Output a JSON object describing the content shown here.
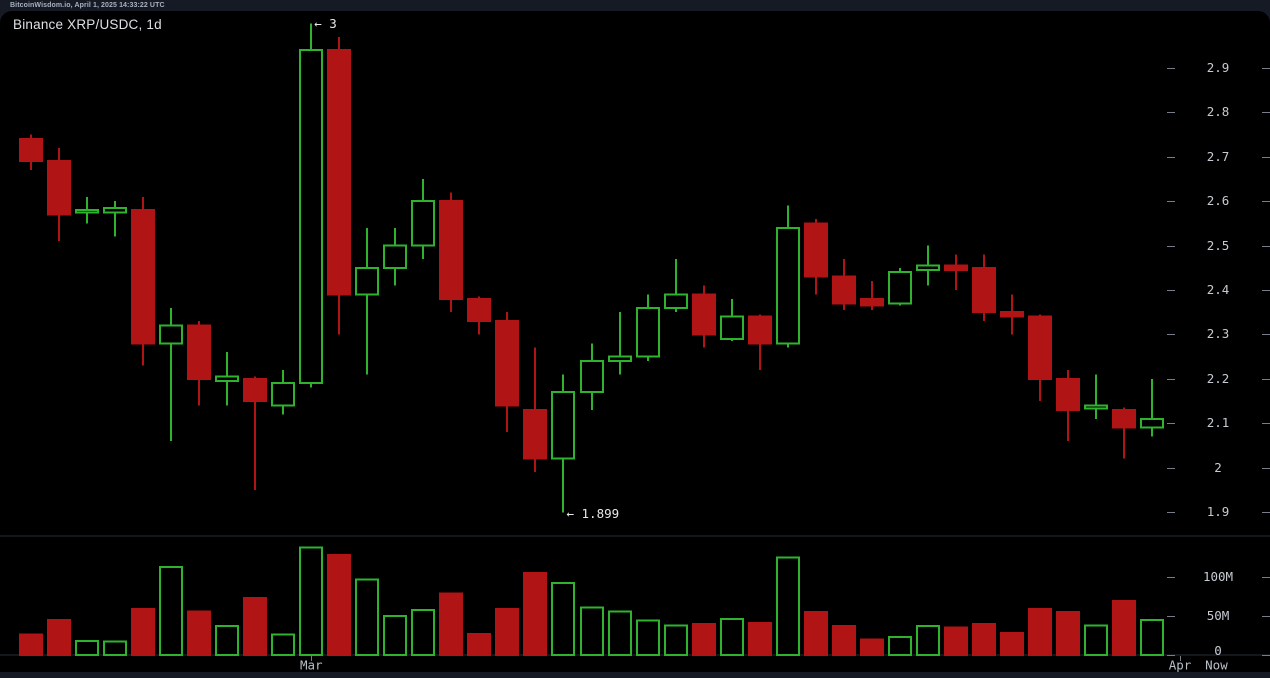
{
  "header": {
    "status_line": "BitcoinWisdom.io, April 1, 2025 14:33:22 UTC"
  },
  "chart": {
    "title": "Binance XRP/USDC, 1d"
  },
  "colors": {
    "background": "#000000",
    "frame": "#161a25",
    "up": "#2fb32f",
    "down": "#b01414",
    "axis_text": "#c6cad2",
    "x_axis_text": "#b9bfc8",
    "tick": "#787d87",
    "divider": "#262b35",
    "annotation": "#e6e8eb"
  },
  "chart_data": {
    "type": "candlestick",
    "title": "Binance XRP/USDC, 1d",
    "legend_position": "none",
    "grid": false,
    "price_axis": {
      "side": "right",
      "ticks": [
        {
          "value": 2.9,
          "label": "2.9"
        },
        {
          "value": 2.8,
          "label": "2.8"
        },
        {
          "value": 2.7,
          "label": "2.7"
        },
        {
          "value": 2.6,
          "label": "2.6"
        },
        {
          "value": 2.5,
          "label": "2.5"
        },
        {
          "value": 2.4,
          "label": "2.4"
        },
        {
          "value": 2.3,
          "label": "2.3"
        },
        {
          "value": 2.2,
          "label": "2.2"
        },
        {
          "value": 2.1,
          "label": "2.1"
        },
        {
          "value": 2.0,
          "label": "2"
        },
        {
          "value": 1.9,
          "label": "1.9"
        }
      ],
      "ylim": [
        1.86,
        3.03
      ]
    },
    "volume_axis": {
      "side": "right",
      "unit": "M",
      "ticks": [
        {
          "value": 100,
          "label": "100M"
        },
        {
          "value": 50,
          "label": "50M"
        },
        {
          "value": 0,
          "label": "0"
        }
      ],
      "ylim": [
        0,
        150
      ]
    },
    "x_axis": {
      "labels": [
        {
          "text": "Mar",
          "candle_index": 10,
          "tick": true
        },
        {
          "text": "Apr",
          "candle_index": 41,
          "tick": true
        },
        {
          "text": "Now",
          "candle_index": 42.3,
          "tick": false
        }
      ]
    },
    "annotations": [
      {
        "text": "← 3",
        "type": "high",
        "candle_index": 10
      },
      {
        "text": "← 1.899",
        "type": "low",
        "candle_index": 19
      }
    ],
    "volume_unit": "millions",
    "candles": [
      {
        "o": 2.74,
        "h": 2.75,
        "l": 2.67,
        "c": 2.69,
        "v": 26
      },
      {
        "o": 2.69,
        "h": 2.72,
        "l": 2.51,
        "c": 2.57,
        "v": 45
      },
      {
        "o": 2.575,
        "h": 2.61,
        "l": 2.55,
        "c": 2.58,
        "v": 18
      },
      {
        "o": 2.575,
        "h": 2.6,
        "l": 2.52,
        "c": 2.585,
        "v": 17
      },
      {
        "o": 2.58,
        "h": 2.61,
        "l": 2.23,
        "c": 2.28,
        "v": 59
      },
      {
        "o": 2.28,
        "h": 2.36,
        "l": 2.06,
        "c": 2.32,
        "v": 113
      },
      {
        "o": 2.32,
        "h": 2.33,
        "l": 2.14,
        "c": 2.2,
        "v": 56
      },
      {
        "o": 2.195,
        "h": 2.26,
        "l": 2.14,
        "c": 2.205,
        "v": 37
      },
      {
        "o": 2.2,
        "h": 2.205,
        "l": 1.95,
        "c": 2.15,
        "v": 73
      },
      {
        "o": 2.14,
        "h": 2.22,
        "l": 2.12,
        "c": 2.19,
        "v": 26
      },
      {
        "o": 2.19,
        "h": 3.0,
        "l": 2.18,
        "c": 2.94,
        "v": 138
      },
      {
        "o": 2.94,
        "h": 2.97,
        "l": 2.3,
        "c": 2.39,
        "v": 128
      },
      {
        "o": 2.39,
        "h": 2.54,
        "l": 2.21,
        "c": 2.45,
        "v": 97
      },
      {
        "o": 2.45,
        "h": 2.54,
        "l": 2.41,
        "c": 2.5,
        "v": 50
      },
      {
        "o": 2.5,
        "h": 2.65,
        "l": 2.47,
        "c": 2.6,
        "v": 58
      },
      {
        "o": 2.6,
        "h": 2.62,
        "l": 2.35,
        "c": 2.38,
        "v": 79
      },
      {
        "o": 2.38,
        "h": 2.385,
        "l": 2.3,
        "c": 2.33,
        "v": 27
      },
      {
        "o": 2.33,
        "h": 2.35,
        "l": 2.08,
        "c": 2.14,
        "v": 59
      },
      {
        "o": 2.13,
        "h": 2.27,
        "l": 1.99,
        "c": 2.02,
        "v": 105
      },
      {
        "o": 2.02,
        "h": 2.21,
        "l": 1.899,
        "c": 2.17,
        "v": 92
      },
      {
        "o": 2.17,
        "h": 2.28,
        "l": 2.13,
        "c": 2.24,
        "v": 61
      },
      {
        "o": 2.24,
        "h": 2.35,
        "l": 2.21,
        "c": 2.25,
        "v": 56
      },
      {
        "o": 2.25,
        "h": 2.39,
        "l": 2.24,
        "c": 2.36,
        "v": 44
      },
      {
        "o": 2.36,
        "h": 2.47,
        "l": 2.35,
        "c": 2.39,
        "v": 38
      },
      {
        "o": 2.39,
        "h": 2.41,
        "l": 2.27,
        "c": 2.3,
        "v": 40
      },
      {
        "o": 2.29,
        "h": 2.38,
        "l": 2.285,
        "c": 2.34,
        "v": 46
      },
      {
        "o": 2.34,
        "h": 2.345,
        "l": 2.22,
        "c": 2.28,
        "v": 41
      },
      {
        "o": 2.28,
        "h": 2.59,
        "l": 2.27,
        "c": 2.54,
        "v": 125
      },
      {
        "o": 2.55,
        "h": 2.56,
        "l": 2.39,
        "c": 2.43,
        "v": 55
      },
      {
        "o": 2.43,
        "h": 2.47,
        "l": 2.355,
        "c": 2.37,
        "v": 37
      },
      {
        "o": 2.38,
        "h": 2.42,
        "l": 2.355,
        "c": 2.365,
        "v": 20
      },
      {
        "o": 2.37,
        "h": 2.45,
        "l": 2.365,
        "c": 2.44,
        "v": 23
      },
      {
        "o": 2.445,
        "h": 2.5,
        "l": 2.41,
        "c": 2.455,
        "v": 37
      },
      {
        "o": 2.455,
        "h": 2.48,
        "l": 2.4,
        "c": 2.445,
        "v": 35
      },
      {
        "o": 2.45,
        "h": 2.48,
        "l": 2.33,
        "c": 2.35,
        "v": 40
      },
      {
        "o": 2.35,
        "h": 2.39,
        "l": 2.3,
        "c": 2.34,
        "v": 28
      },
      {
        "o": 2.34,
        "h": 2.345,
        "l": 2.15,
        "c": 2.2,
        "v": 59
      },
      {
        "o": 2.2,
        "h": 2.22,
        "l": 2.06,
        "c": 2.13,
        "v": 55
      },
      {
        "o": 2.133,
        "h": 2.21,
        "l": 2.11,
        "c": 2.14,
        "v": 38
      },
      {
        "o": 2.13,
        "h": 2.135,
        "l": 2.02,
        "c": 2.09,
        "v": 69
      },
      {
        "o": 2.09,
        "h": 2.2,
        "l": 2.07,
        "c": 2.11,
        "v": 45
      }
    ]
  }
}
